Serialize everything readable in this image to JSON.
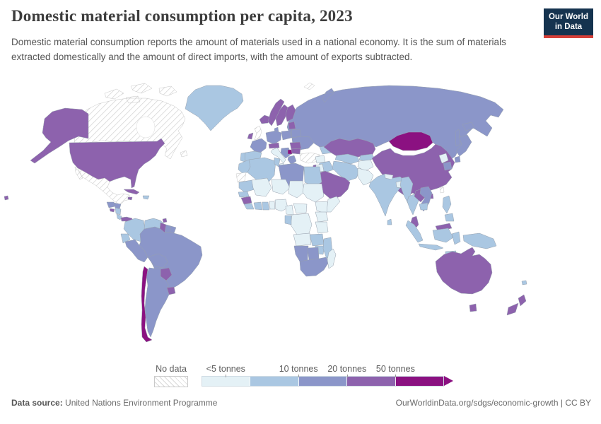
{
  "header": {
    "title": "Domestic material consumption per capita, 2023",
    "subtitle": "Domestic material consumption reports the amount of materials used in a national economy. It is the sum of materials extracted domestically and the amount of direct imports, with the amount of exports subtracted.",
    "logo": {
      "line1": "Our World",
      "line2": "in Data",
      "bg_color": "#15334f",
      "accent_color": "#d63f38"
    }
  },
  "legend": {
    "no_data_label": "No data",
    "bins": [
      {
        "id": "<5",
        "color": "#e4f1f6"
      },
      {
        "id": "5-10",
        "color": "#aac7e2"
      },
      {
        "id": "10-20",
        "color": "#8b96c9"
      },
      {
        "id": "20-50",
        "color": "#8d62ad"
      },
      {
        "id": ">50",
        "color": "#8b1181"
      }
    ],
    "tick_labels": [
      {
        "label": "<5 tonnes",
        "pos": 10
      },
      {
        "label": "10 tonnes",
        "pos": 40
      },
      {
        "label": "20 tonnes",
        "pos": 60
      },
      {
        "label": "50 tonnes",
        "pos": 80
      }
    ]
  },
  "footer": {
    "source_label": "Data source:",
    "source": "United Nations Environment Programme",
    "right": "OurWorldinData.org/sdgs/economic-growth | CC BY"
  },
  "chart_data": {
    "type": "choropleth-map",
    "title": "Domestic material consumption per capita, 2023",
    "unit": "tonnes per capita",
    "year": 2023,
    "bin_ranges": [
      "<5",
      "5-10",
      "10-20",
      "20-50",
      ">50",
      "no-data"
    ],
    "countries": {
      "Russia": "10-20",
      "Canada": "no-data",
      "United States": "20-50",
      "Mexico": "no-data",
      "Greenland": "5-10",
      "Svalbard": "no-data",
      "Iceland": "20-50",
      "Ireland": "20-50",
      "United Kingdom": "no-data",
      "Norway": "20-50",
      "Sweden": "20-50",
      "Finland": "20-50",
      "Baltic states": "20-50",
      "Denmark": "10-20",
      "France": "10-20",
      "Spain": "5-10",
      "Portugal": "5-10",
      "Central Europe": "10-20",
      "Poland": "10-20",
      "Belarus": "10-20",
      "Ukraine": "10-20",
      "Austria & Switzerland": "20-50",
      "Italy": "<5",
      "Western Balkans": "10-20",
      "Serbia": ">50",
      "Romania": "20-50",
      "Bulgaria": "20-50",
      "Greece": "10-20",
      "Turkey": "no-data",
      "Cyprus": "20-50",
      "Caucasus": "5-10",
      "Kazakhstan": "20-50",
      "Central Asia": "5-10",
      "Kyrgyzstan & Tajikistan": "5-10",
      "Mongolia": ">50",
      "China": "20-50",
      "North Korea": "<5",
      "South Korea": "10-20",
      "Japan": "10-20",
      "Taiwan": "no-data",
      "Syria": "<5",
      "Iraq": "5-10",
      "Iran": "5-10",
      "Jordan": "<5",
      "Israel": "20-50",
      "Arabian Peninsula": "20-50",
      "Afghanistan": "<5",
      "Pakistan": "<5",
      "India": "5-10",
      "Nepal": "<5",
      "Bangladesh": "<5",
      "Sri Lanka": "5-10",
      "Myanmar": "5-10",
      "Thailand": "5-10",
      "Laos": "20-50",
      "Vietnam": "10-20",
      "Cambodia": "5-10",
      "Malaysia": "20-50",
      "Indonesia": "5-10",
      "Philippines": "5-10",
      "Papua New Guinea": "5-10",
      "Australia": "20-50",
      "New Zealand": "20-50",
      "New Caledonia": "5-10",
      "Morocco": "5-10",
      "Western Sahara": "no-data",
      "Algeria": "5-10",
      "Tunisia": "5-10",
      "Libya": "10-20",
      "Egypt": "5-10",
      "Mauritania": "5-10",
      "Mali": "<5",
      "Niger": "<5",
      "Chad": "<5",
      "Sudan": "<5",
      "Senegal": "5-10",
      "Guinea": "20-50",
      "Sierra Leone & Liberia": "5-10",
      "Cote d'Ivoire": "5-10",
      "Ghana": "5-10",
      "Togo & Benin": "<5",
      "Nigeria": "<5",
      "Cameroon": "<5",
      "Central African Republic": "<5",
      "Ethiopia": "<5",
      "Somalia": "<5",
      "Kenya & Uganda": "<5",
      "Democratic Republic of Congo": "<5",
      "Gabon": "5-10",
      "Tanzania": "<5",
      "Angola": "<5",
      "Zambia": "5-10",
      "Zimbabwe": "5-10",
      "Mozambique": "5-10",
      "Namibia": "10-20",
      "Botswana": "10-20",
      "South Africa": "10-20",
      "Madagascar": "<5",
      "Guatemala": "10-20",
      "Honduras": "10-20",
      "El Salvador": "20-50",
      "Nicaragua": "5-10",
      "Costa Rica": "5-10",
      "Panama": "20-50",
      "Cuba": "20-50",
      "Jamaica": "20-50",
      "Dominican Republic": "5-10",
      "Trinidad and Tobago": "20-50",
      "Colombia": "5-10",
      "Venezuela": "5-10",
      "Guyana": "20-50",
      "Suriname": "10-20",
      "French Guiana": "10-20",
      "Ecuador": "5-10",
      "Peru": "10-20",
      "Brazil": "10-20",
      "Bolivia": "10-20",
      "Paraguay": "20-50",
      "Uruguay": "20-50",
      "Argentina": "10-20",
      "Chile": ">50"
    }
  }
}
